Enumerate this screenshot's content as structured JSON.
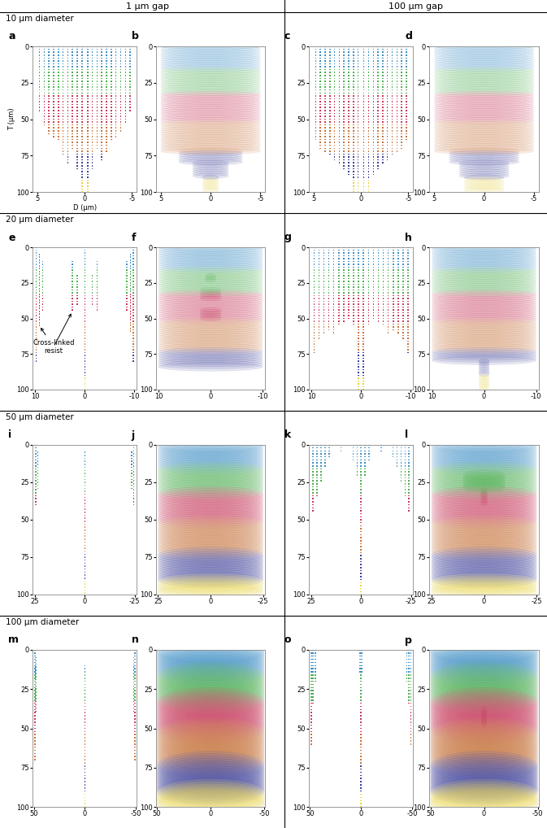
{
  "column_titles": [
    "1 µm gap",
    "100 µm gap"
  ],
  "row_titles": [
    "10 µm diameter",
    "20 µm diameter",
    "50 µm diameter",
    "100 µm diameter"
  ],
  "depth_colors": [
    {
      "from": 0,
      "to": 15,
      "color": "#3d8fc6"
    },
    {
      "from": 15,
      "to": 32,
      "color": "#4caf50"
    },
    {
      "from": 32,
      "to": 52,
      "color": "#c8385a"
    },
    {
      "from": 52,
      "to": 72,
      "color": "#c8733a"
    },
    {
      "from": 72,
      "to": 90,
      "color": "#3c3f9a"
    },
    {
      "from": 90,
      "to": 100,
      "color": "#e8d23a"
    }
  ],
  "chart_data": [
    {
      "panel": "a",
      "type": "scatter",
      "row": 0,
      "col": 0,
      "x_label": "D (µm)",
      "y_label": "T (µm)",
      "xlim": [
        5.5,
        -5.5
      ],
      "xticks": [
        5,
        0,
        -5
      ],
      "ylim": [
        100,
        0
      ],
      "yticks": [
        0,
        25,
        50,
        75,
        100
      ],
      "columns": [
        [
          4.8,
          0,
          45
        ],
        [
          4.3,
          0,
          55
        ],
        [
          3.8,
          0,
          60
        ],
        [
          3.3,
          0,
          62
        ],
        [
          2.8,
          0,
          65
        ],
        [
          2.3,
          0,
          75
        ],
        [
          1.8,
          0,
          80
        ],
        [
          1.3,
          0,
          70
        ],
        [
          0.8,
          0,
          85
        ],
        [
          0.3,
          0,
          100
        ],
        [
          -0.3,
          0,
          100
        ],
        [
          -0.8,
          0,
          85
        ],
        [
          -1.3,
          0,
          70
        ],
        [
          -1.8,
          0,
          78
        ],
        [
          -2.3,
          0,
          72
        ],
        [
          -2.8,
          0,
          65
        ],
        [
          -3.3,
          0,
          62
        ],
        [
          -3.8,
          0,
          58
        ],
        [
          -4.3,
          0,
          52
        ],
        [
          -4.8,
          0,
          45
        ]
      ]
    },
    {
      "panel": "b",
      "type": "rings",
      "row": 0,
      "col": 1,
      "xlim": [
        5.5,
        -5.5
      ],
      "xticks": [
        5,
        0,
        -5
      ],
      "ylim": [
        100,
        0
      ],
      "yticks": [
        0,
        25,
        50,
        75,
        100
      ],
      "layers": [
        [
          0,
          72,
          5
        ],
        [
          72,
          80,
          3.2
        ],
        [
          80,
          90,
          1.8
        ],
        [
          90,
          100,
          0.8
        ]
      ]
    },
    {
      "panel": "c",
      "type": "scatter",
      "row": 0,
      "col": 2,
      "xlim": [
        5.5,
        -5.5
      ],
      "xticks": [
        5,
        0,
        -5
      ],
      "ylim": [
        100,
        0
      ],
      "yticks": [
        0,
        25,
        50,
        75,
        100
      ],
      "columns": [
        [
          4.8,
          0,
          65
        ],
        [
          4.3,
          0,
          70
        ],
        [
          3.8,
          0,
          72
        ],
        [
          3.3,
          0,
          75
        ],
        [
          2.8,
          0,
          78
        ],
        [
          2.3,
          0,
          80
        ],
        [
          1.8,
          0,
          85
        ],
        [
          1.3,
          0,
          88
        ],
        [
          0.8,
          0,
          100
        ],
        [
          0.3,
          0,
          100
        ],
        [
          -0.3,
          0,
          100
        ],
        [
          -0.8,
          0,
          100
        ],
        [
          -1.3,
          0,
          88
        ],
        [
          -1.8,
          0,
          85
        ],
        [
          -2.3,
          0,
          80
        ],
        [
          -2.8,
          0,
          78
        ],
        [
          -3.3,
          0,
          75
        ],
        [
          -3.8,
          0,
          72
        ],
        [
          -4.3,
          0,
          70
        ],
        [
          -4.8,
          0,
          65
        ]
      ]
    },
    {
      "panel": "d",
      "type": "rings",
      "row": 0,
      "col": 3,
      "xlim": [
        5.5,
        -5.5
      ],
      "xticks": [
        5,
        0,
        -5
      ],
      "ylim": [
        100,
        0
      ],
      "yticks": [
        0,
        25,
        50,
        75,
        100
      ],
      "layers": [
        [
          0,
          72,
          5
        ],
        [
          72,
          80,
          3.5
        ],
        [
          80,
          90,
          2.5
        ],
        [
          90,
          100,
          2
        ]
      ]
    },
    {
      "panel": "e",
      "type": "scatter",
      "row": 1,
      "col": 0,
      "xlim": [
        10.5,
        -10.5
      ],
      "xticks": [
        10,
        0,
        -10
      ],
      "ylim": [
        100,
        0
      ],
      "yticks": [
        0,
        25,
        50,
        75,
        100
      ],
      "columns": [
        [
          9.8,
          0,
          80
        ],
        [
          9.2,
          5,
          55
        ],
        [
          8.5,
          10,
          45
        ],
        [
          2.5,
          10,
          45
        ],
        [
          1.5,
          20,
          40
        ],
        [
          0,
          0,
          100
        ],
        [
          -1.5,
          20,
          40
        ],
        [
          -2.5,
          10,
          45
        ],
        [
          -8.5,
          10,
          45
        ],
        [
          -9.2,
          5,
          60
        ],
        [
          -9.8,
          0,
          80
        ]
      ],
      "annotations": [
        {
          "text": "Cross-linked\nresist",
          "points": [
            [
              9.2,
              55
            ],
            [
              2.5,
              45
            ]
          ]
        }
      ]
    },
    {
      "panel": "f",
      "type": "rings",
      "row": 1,
      "col": 1,
      "xlim": [
        10.5,
        -10.5
      ],
      "xticks": [
        10,
        0,
        -10
      ],
      "ylim": [
        100,
        0
      ],
      "yticks": [
        0,
        25,
        50,
        75,
        100
      ],
      "layers": [
        [
          0,
          85,
          10
        ],
        [
          20,
          24,
          1
        ],
        [
          30,
          36,
          2
        ],
        [
          44,
          50,
          2
        ]
      ]
    },
    {
      "panel": "g",
      "type": "scatter",
      "row": 1,
      "col": 2,
      "xlim": [
        10.5,
        -10.5
      ],
      "xticks": [
        10,
        0,
        -10
      ],
      "ylim": [
        100,
        0
      ],
      "yticks": [
        0,
        25,
        50,
        75,
        100
      ],
      "columns": [
        [
          9.5,
          0,
          75
        ],
        [
          8.5,
          0,
          65
        ],
        [
          7.5,
          0,
          60
        ],
        [
          6.5,
          0,
          58
        ],
        [
          5.5,
          0,
          60
        ],
        [
          4.5,
          0,
          55
        ],
        [
          3.5,
          0,
          52
        ],
        [
          2.5,
          0,
          50
        ],
        [
          1.5,
          0,
          55
        ],
        [
          0.5,
          0,
          100
        ],
        [
          -0.5,
          0,
          100
        ],
        [
          -1.5,
          0,
          55
        ],
        [
          -2.5,
          0,
          50
        ],
        [
          -3.5,
          0,
          52
        ],
        [
          -4.5,
          0,
          55
        ],
        [
          -5.5,
          0,
          60
        ],
        [
          -6.5,
          0,
          58
        ],
        [
          -7.5,
          0,
          60
        ],
        [
          -8.5,
          0,
          65
        ],
        [
          -9.5,
          0,
          75
        ]
      ]
    },
    {
      "panel": "h",
      "type": "rings",
      "row": 1,
      "col": 3,
      "xlim": [
        10.5,
        -10.5
      ],
      "xticks": [
        10,
        0,
        -10
      ],
      "ylim": [
        100,
        0
      ],
      "yticks": [
        0,
        25,
        50,
        75,
        100
      ],
      "layers": [
        [
          0,
          80,
          10
        ],
        [
          80,
          100,
          1
        ]
      ]
    },
    {
      "panel": "i",
      "type": "scatter",
      "row": 2,
      "col": 0,
      "xlim": [
        26,
        -26
      ],
      "xticks": [
        25,
        0,
        -25
      ],
      "ylim": [
        100,
        0
      ],
      "yticks": [
        0,
        25,
        50,
        75,
        100
      ],
      "columns": [
        [
          24.5,
          0,
          40
        ],
        [
          23.5,
          5,
          30
        ],
        [
          0,
          5,
          100
        ],
        [
          -23.5,
          5,
          30
        ],
        [
          -24.5,
          0,
          40
        ]
      ]
    },
    {
      "panel": "j",
      "type": "rings",
      "row": 2,
      "col": 1,
      "xlim": [
        26,
        -26
      ],
      "xticks": [
        25,
        0,
        -25
      ],
      "ylim": [
        100,
        0
      ],
      "yticks": [
        0,
        25,
        50,
        75,
        100
      ],
      "layers": [
        [
          0,
          100,
          25
        ]
      ]
    },
    {
      "panel": "k",
      "type": "scatter",
      "row": 2,
      "col": 2,
      "xlim": [
        26,
        -26
      ],
      "xticks": [
        25,
        0,
        -25
      ],
      "ylim": [
        100,
        0
      ],
      "yticks": [
        0,
        25,
        50,
        75,
        100
      ],
      "columns": [
        [
          24,
          0,
          45
        ],
        [
          22,
          0,
          35
        ],
        [
          20,
          0,
          25
        ],
        [
          18,
          0,
          15
        ],
        [
          16,
          0,
          8
        ],
        [
          10,
          0,
          4
        ],
        [
          4,
          0,
          10
        ],
        [
          2,
          0,
          20
        ],
        [
          0,
          0,
          100
        ],
        [
          -2,
          0,
          20
        ],
        [
          -4,
          0,
          10
        ],
        [
          -10,
          0,
          4
        ],
        [
          -16,
          0,
          8
        ],
        [
          -18,
          0,
          15
        ],
        [
          -20,
          0,
          25
        ],
        [
          -22,
          0,
          35
        ],
        [
          -24,
          0,
          45
        ]
      ]
    },
    {
      "panel": "l",
      "type": "rings",
      "row": 2,
      "col": 3,
      "xlim": [
        26,
        -26
      ],
      "xticks": [
        25,
        0,
        -25
      ],
      "ylim": [
        100,
        0
      ],
      "yticks": [
        0,
        25,
        50,
        75,
        100
      ],
      "layers": [
        [
          0,
          100,
          25
        ],
        [
          20,
          30,
          10
        ],
        [
          30,
          40,
          1.5
        ]
      ]
    },
    {
      "panel": "m",
      "type": "scatter",
      "row": 3,
      "col": 0,
      "xlim": [
        51,
        -51
      ],
      "xticks": [
        50,
        0,
        -50
      ],
      "ylim": [
        100,
        0
      ],
      "yticks": [
        0,
        25,
        50,
        75,
        100
      ],
      "columns": [
        [
          49,
          0,
          70
        ],
        [
          48,
          5,
          40
        ],
        [
          0,
          10,
          100
        ],
        [
          -48,
          5,
          40
        ],
        [
          -49,
          0,
          70
        ]
      ]
    },
    {
      "panel": "n",
      "type": "rings",
      "row": 3,
      "col": 1,
      "xlim": [
        51,
        -51
      ],
      "xticks": [
        50,
        0,
        -50
      ],
      "ylim": [
        100,
        0
      ],
      "yticks": [
        0,
        25,
        50,
        75,
        100
      ],
      "layers": [
        [
          0,
          100,
          50
        ]
      ]
    },
    {
      "panel": "o",
      "type": "scatter",
      "row": 3,
      "col": 2,
      "xlim": [
        51,
        -51
      ],
      "xticks": [
        50,
        0,
        -50
      ],
      "ylim": [
        100,
        0
      ],
      "yticks": [
        0,
        25,
        50,
        75,
        100
      ],
      "columns": [
        [
          49,
          0,
          60
        ],
        [
          47,
          0,
          35
        ],
        [
          45,
          0,
          20
        ],
        [
          1,
          0,
          15
        ],
        [
          0,
          0,
          100
        ],
        [
          -1,
          0,
          15
        ],
        [
          -45,
          0,
          20
        ],
        [
          -47,
          0,
          35
        ],
        [
          -49,
          0,
          60
        ]
      ]
    },
    {
      "panel": "p",
      "type": "rings",
      "row": 3,
      "col": 3,
      "xlim": [
        51,
        -51
      ],
      "xticks": [
        50,
        0,
        -50
      ],
      "ylim": [
        100,
        0
      ],
      "yticks": [
        0,
        25,
        50,
        75,
        100
      ],
      "layers": [
        [
          0,
          100,
          50
        ],
        [
          38,
          48,
          2.5
        ]
      ]
    }
  ]
}
